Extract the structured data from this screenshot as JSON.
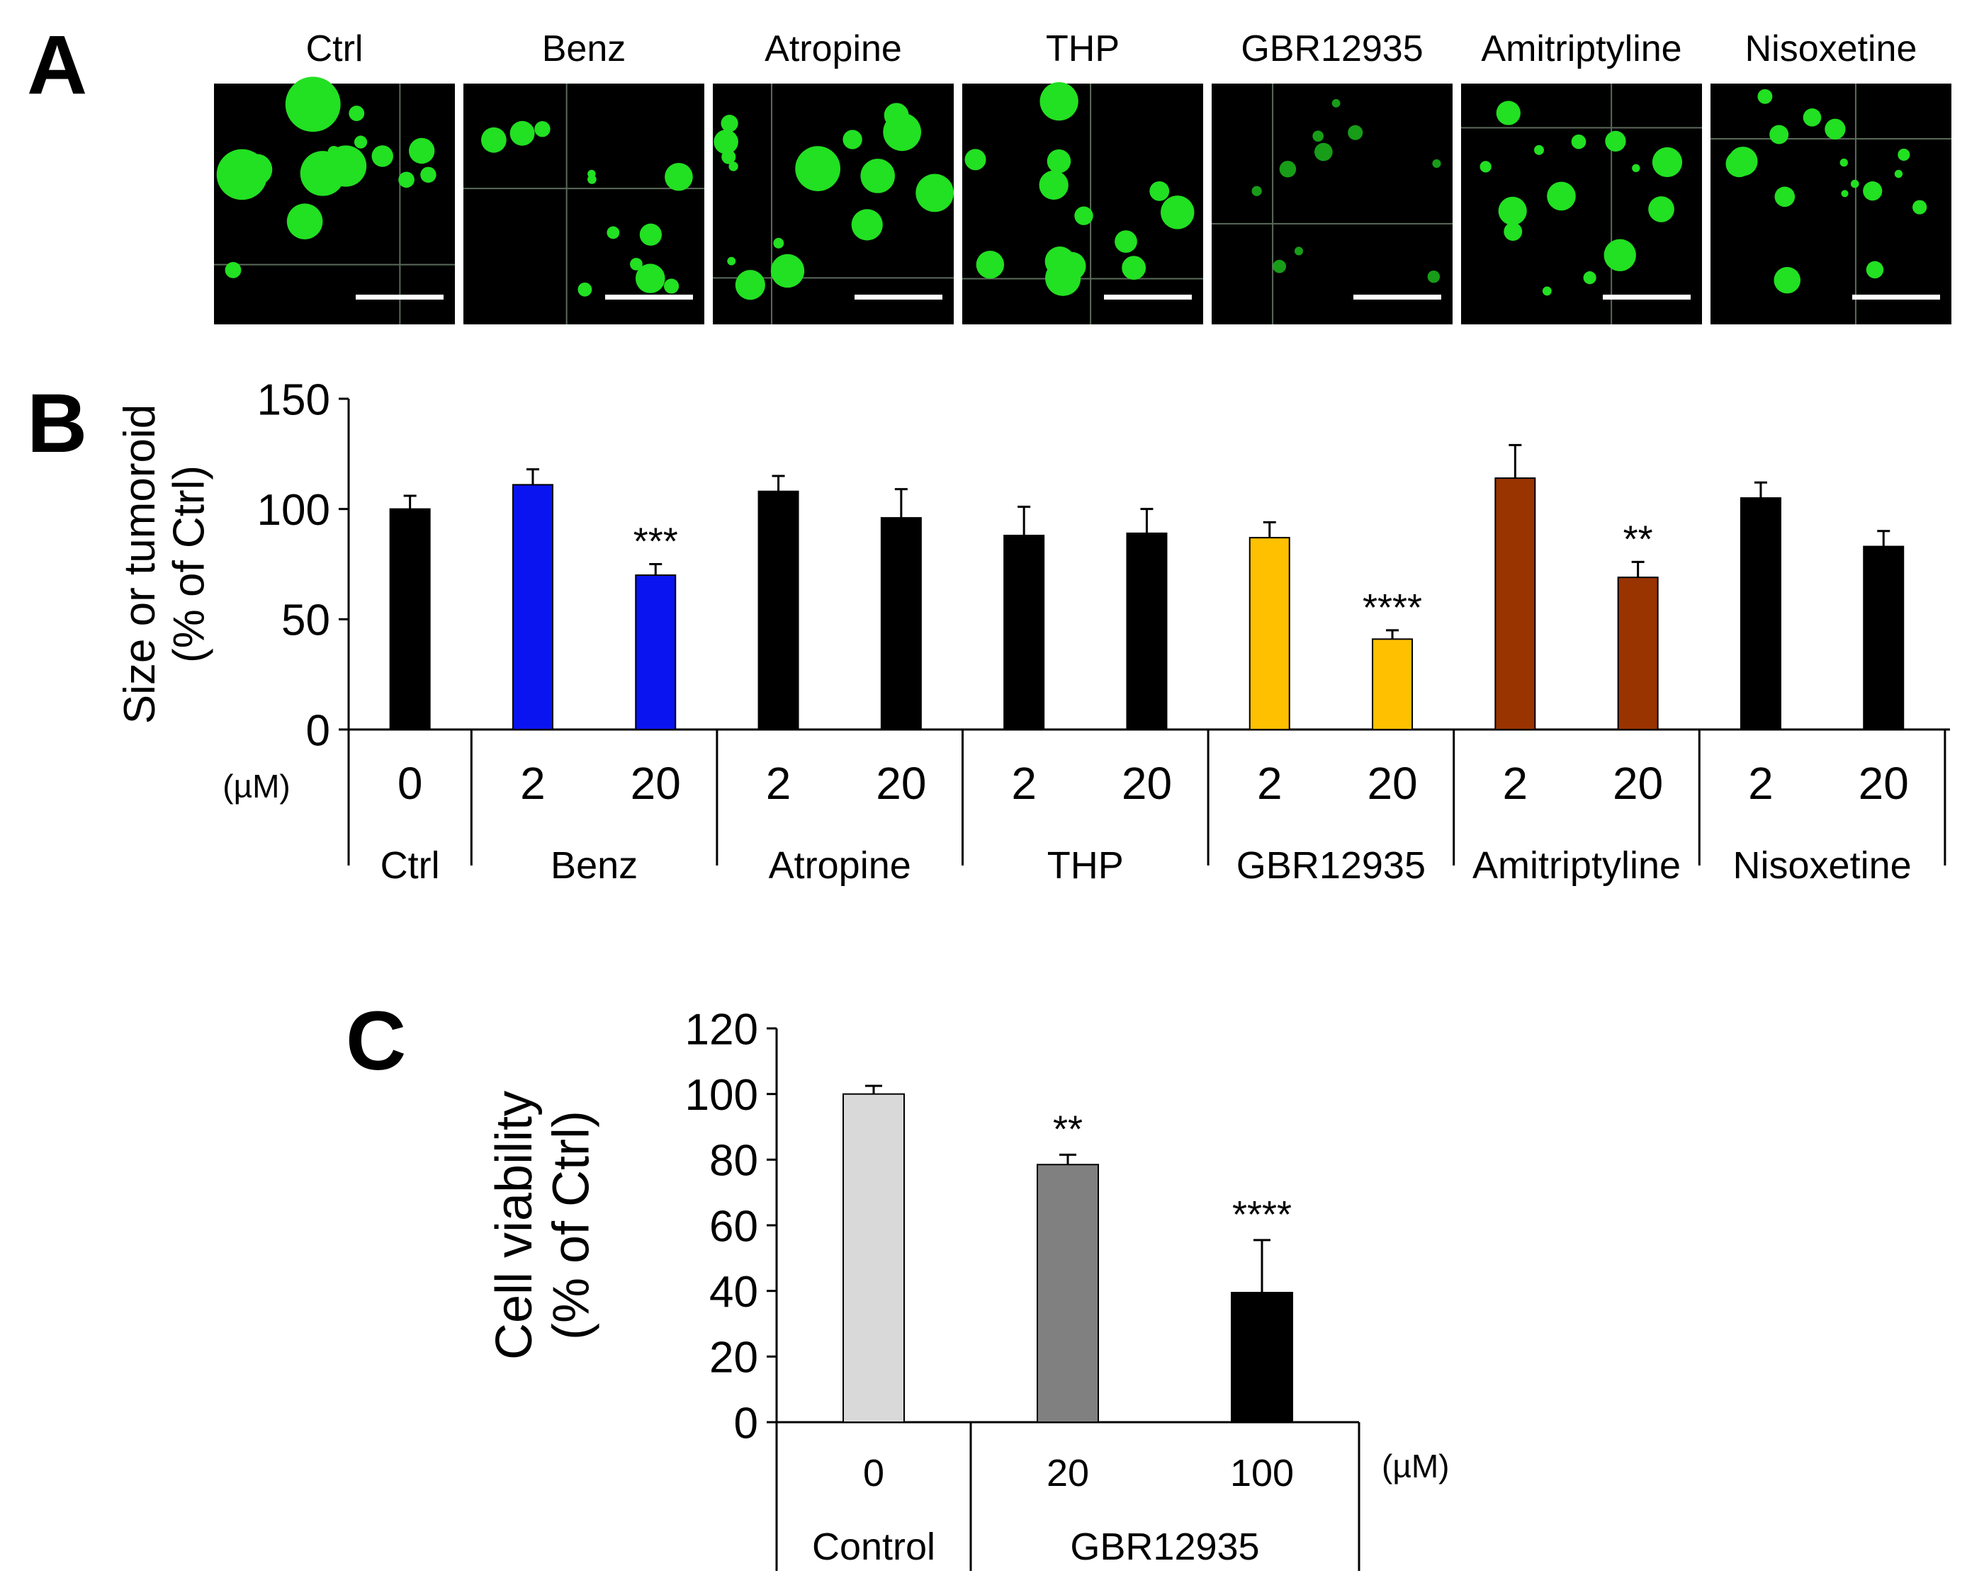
{
  "panel_letters": {
    "a": "A",
    "b": "B",
    "c": "C"
  },
  "colors": {
    "bar_black": "#000000",
    "bar_blue": "#0a14f0",
    "bar_yellow": "#ffc000",
    "bar_brown": "#993300",
    "c_control": "#d9d9d9",
    "c_gbr20": "#808080",
    "c_gbr100": "#000000",
    "micrograph_bg": "#000000",
    "tumoroid_green": "#22e022"
  },
  "panel_a": {
    "labels": [
      "Ctrl",
      "Benz",
      "Atropine",
      "THP",
      "GBR12935",
      "Amitriptyline",
      "Nisoxetine"
    ]
  },
  "chart_data": [
    {
      "type": "bar",
      "panel": "B",
      "ylabel_line1": "Size or tumoroid",
      "ylabel_line2": "(% of Ctrl)",
      "ylim": [
        0,
        150
      ],
      "yticks": [
        "0",
        "50",
        "100",
        "150"
      ],
      "unit_label": "(µM)",
      "groups": [
        {
          "name": "Ctrl",
          "bars": [
            {
              "dose": "0",
              "value": 100,
              "error": 6,
              "color": "#000000",
              "sig": ""
            }
          ]
        },
        {
          "name": "Benz",
          "bars": [
            {
              "dose": "2",
              "value": 111,
              "error": 7,
              "color": "#0a14f0",
              "sig": ""
            },
            {
              "dose": "20",
              "value": 70,
              "error": 5,
              "color": "#0a14f0",
              "sig": "***"
            }
          ]
        },
        {
          "name": "Atropine",
          "bars": [
            {
              "dose": "2",
              "value": 108,
              "error": 7,
              "color": "#000000",
              "sig": ""
            },
            {
              "dose": "20",
              "value": 96,
              "error": 13,
              "color": "#000000",
              "sig": ""
            }
          ]
        },
        {
          "name": "THP",
          "bars": [
            {
              "dose": "2",
              "value": 88,
              "error": 13,
              "color": "#000000",
              "sig": ""
            },
            {
              "dose": "20",
              "value": 89,
              "error": 11,
              "color": "#000000",
              "sig": ""
            }
          ]
        },
        {
          "name": "GBR12935",
          "bars": [
            {
              "dose": "2",
              "value": 87,
              "error": 7,
              "color": "#ffc000",
              "sig": ""
            },
            {
              "dose": "20",
              "value": 41,
              "error": 4,
              "color": "#ffc000",
              "sig": "****"
            }
          ]
        },
        {
          "name": "Amitriptyline",
          "bars": [
            {
              "dose": "2",
              "value": 114,
              "error": 15,
              "color": "#993300",
              "sig": ""
            },
            {
              "dose": "20",
              "value": 69,
              "error": 7,
              "color": "#993300",
              "sig": "**"
            }
          ]
        },
        {
          "name": "Nisoxetine",
          "bars": [
            {
              "dose": "2",
              "value": 105,
              "error": 7,
              "color": "#000000",
              "sig": ""
            },
            {
              "dose": "20",
              "value": 83,
              "error": 7,
              "color": "#000000",
              "sig": ""
            }
          ]
        }
      ]
    },
    {
      "type": "bar",
      "panel": "C",
      "ylabel_line1": "Cell viability",
      "ylabel_line2": "(% of Ctrl)",
      "ylim": [
        0,
        120
      ],
      "yticks": [
        "0",
        "20",
        "40",
        "60",
        "80",
        "100",
        "120"
      ],
      "unit_label": "(µM)",
      "groups": [
        {
          "name": "Control",
          "bars": [
            {
              "dose": "0",
              "value": 100,
              "error": 2.5,
              "color": "#d9d9d9",
              "sig": ""
            }
          ]
        },
        {
          "name": "GBR12935",
          "bars": [
            {
              "dose": "20",
              "value": 78.5,
              "error": 3,
              "color": "#808080",
              "sig": "**"
            },
            {
              "dose": "100",
              "value": 39.5,
              "error": 16,
              "color": "#000000",
              "sig": "****"
            }
          ]
        }
      ]
    }
  ]
}
